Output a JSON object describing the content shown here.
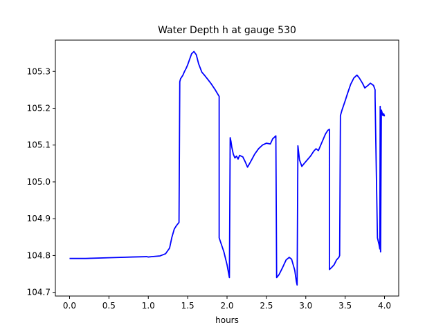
{
  "chart_data": {
    "type": "line",
    "title": "Water Depth h at gauge 530",
    "xlabel": "hours",
    "ylabel": "",
    "xlim": [
      -0.18,
      4.18
    ],
    "ylim": [
      104.69,
      105.385
    ],
    "xticks": [
      0.0,
      0.5,
      1.0,
      1.5,
      2.0,
      2.5,
      3.0,
      3.5,
      4.0
    ],
    "xtick_labels": [
      "0.0",
      "0.5",
      "1.0",
      "1.5",
      "2.0",
      "2.5",
      "3.0",
      "3.5",
      "4.0"
    ],
    "yticks": [
      104.7,
      104.8,
      104.9,
      105.0,
      105.1,
      105.2,
      105.3
    ],
    "ytick_labels": [
      "104.7",
      "104.8",
      "104.9",
      "105.0",
      "105.1",
      "105.2",
      "105.3"
    ],
    "grid": false,
    "series": [
      {
        "color": "#0000ff",
        "x": [
          0.0,
          0.2,
          0.5,
          0.8,
          0.98,
          1.0,
          1.05,
          1.15,
          1.22,
          1.27,
          1.3,
          1.33,
          1.36,
          1.39,
          1.4,
          1.41,
          1.44,
          1.46,
          1.48,
          1.5,
          1.52,
          1.55,
          1.58,
          1.61,
          1.64,
          1.68,
          1.72,
          1.75,
          1.8,
          1.85,
          1.9,
          1.9,
          1.96,
          2.0,
          2.03,
          2.04,
          2.05,
          2.06,
          2.08,
          2.1,
          2.12,
          2.14,
          2.16,
          2.2,
          2.23,
          2.26,
          2.3,
          2.35,
          2.4,
          2.45,
          2.5,
          2.55,
          2.58,
          2.62,
          2.63,
          2.66,
          2.7,
          2.75,
          2.79,
          2.82,
          2.86,
          2.88,
          2.89,
          2.9,
          2.92,
          2.95,
          2.98,
          3.02,
          3.06,
          3.1,
          3.13,
          3.16,
          3.2,
          3.25,
          3.28,
          3.3,
          3.3,
          3.33,
          3.36,
          3.39,
          3.42,
          3.43,
          3.44,
          3.46,
          3.5,
          3.53,
          3.57,
          3.61,
          3.65,
          3.68,
          3.72,
          3.75,
          3.79,
          3.82,
          3.86,
          3.88,
          3.88,
          3.91,
          3.93,
          3.94,
          3.945,
          3.95,
          3.96,
          3.98,
          3.99,
          4.0
        ],
        "y": [
          104.792,
          104.792,
          104.794,
          104.796,
          104.797,
          104.796,
          104.797,
          104.799,
          104.805,
          104.82,
          104.85,
          104.872,
          104.882,
          104.89,
          105.272,
          105.28,
          105.29,
          105.3,
          105.308,
          105.318,
          105.33,
          105.348,
          105.354,
          105.345,
          105.32,
          105.298,
          105.288,
          105.28,
          105.266,
          105.25,
          105.232,
          104.848,
          104.81,
          104.775,
          104.74,
          105.12,
          105.11,
          105.095,
          105.075,
          105.065,
          105.07,
          105.062,
          105.072,
          105.068,
          105.055,
          105.04,
          105.055,
          105.075,
          105.09,
          105.1,
          105.105,
          105.103,
          105.117,
          105.125,
          104.74,
          104.748,
          104.765,
          104.788,
          104.795,
          104.79,
          104.76,
          104.73,
          104.72,
          105.098,
          105.06,
          105.042,
          105.05,
          105.06,
          105.07,
          105.083,
          105.09,
          105.085,
          105.105,
          105.13,
          105.14,
          105.143,
          104.762,
          104.768,
          104.775,
          104.788,
          104.795,
          104.8,
          105.18,
          105.195,
          105.22,
          105.24,
          105.265,
          105.282,
          105.29,
          105.282,
          105.268,
          105.255,
          105.262,
          105.268,
          105.262,
          105.25,
          105.232,
          104.848,
          104.83,
          104.818,
          105.205,
          104.81,
          105.195,
          105.18,
          105.185,
          105.178
        ]
      }
    ]
  }
}
